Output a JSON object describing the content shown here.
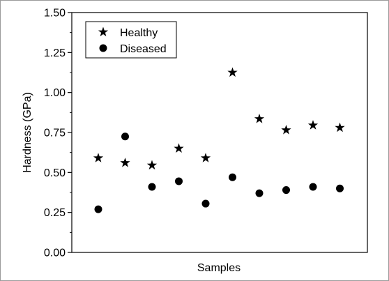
{
  "chart_data": {
    "type": "scatter",
    "ylabel": "Hardness (GPa)",
    "xlabel": "Samples",
    "ylim": [
      0.0,
      1.5
    ],
    "yticks": [
      "0.00",
      "0.25",
      "0.50",
      "0.75",
      "1.00",
      "1.25",
      "1.50"
    ],
    "x": [
      1,
      2,
      3,
      4,
      5,
      6,
      7,
      8,
      9,
      10
    ],
    "grid": false,
    "legend_position": "top-left",
    "series": [
      {
        "name": "Healthy",
        "marker": "star",
        "color": "#000000",
        "values": [
          0.59,
          0.56,
          0.545,
          0.65,
          0.59,
          1.125,
          0.835,
          0.765,
          0.795,
          0.78
        ]
      },
      {
        "name": "Diseased",
        "marker": "circle",
        "color": "#000000",
        "values": [
          0.27,
          0.725,
          0.41,
          0.445,
          0.305,
          0.47,
          0.37,
          0.39,
          0.41,
          0.4
        ]
      }
    ]
  }
}
